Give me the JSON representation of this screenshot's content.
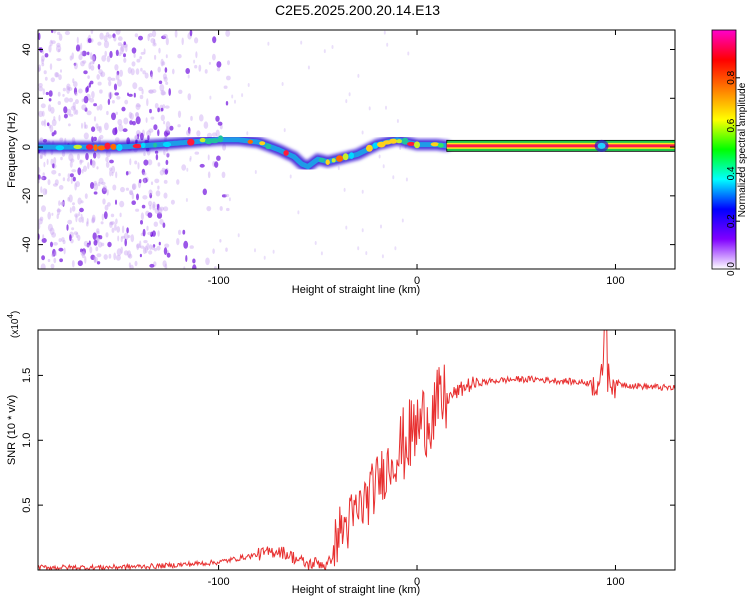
{
  "title": "C2E5.2025.200.20.14.E13",
  "colors": {
    "signal": "#e83030",
    "scatter": "#8b1fe0",
    "colorbar_stops": [
      "#ff00cc",
      "#ff0000",
      "#ff7f00",
      "#ffff00",
      "#00ff00",
      "#00ffff",
      "#0000ff",
      "#8000ff",
      "#ffffff"
    ]
  },
  "chart_data": [
    {
      "type": "heatmap",
      "xlabel": "Height of straight line (km)",
      "ylabel": "Frequency (Hz)",
      "xlim": [
        -191,
        130
      ],
      "ylim": [
        -50,
        48
      ],
      "xticks": [
        -100,
        0,
        100
      ],
      "xtick_labels": [
        "-100",
        "0",
        "100"
      ],
      "yticks": [
        -40,
        -20,
        0,
        20,
        40
      ],
      "ytick_labels": [
        "-40",
        "-20",
        "0",
        "20",
        "40"
      ],
      "colorbar": {
        "label": "Normalized spectral amplitude",
        "range": [
          0.0,
          1.0
        ],
        "ticks": [
          0.0,
          0.2,
          0.4,
          0.6,
          0.8
        ],
        "tick_labels": [
          "0.0",
          "0.2",
          "0.4",
          "0.6",
          "0.8"
        ]
      },
      "ridge": {
        "x": [
          -191,
          -170,
          -150,
          -130,
          -115,
          -100,
          -90,
          -80,
          -70,
          -62,
          -58,
          -55,
          -50,
          -45,
          -40,
          -35,
          -30,
          -25,
          -20,
          -15,
          -10,
          -5,
          0,
          5,
          10,
          15,
          20,
          40,
          60,
          80,
          100,
          120,
          130
        ],
        "y": [
          0,
          0,
          0,
          1,
          2,
          3,
          3,
          2,
          -1,
          -4,
          -7,
          -8,
          -5,
          -6,
          -5,
          -4,
          -3,
          -1,
          1,
          2,
          3,
          2,
          1,
          1,
          1,
          0.5,
          0.5,
          0.5,
          0.5,
          0.5,
          0.5,
          0.5,
          0.5
        ]
      },
      "constant_band": {
        "x": [
          15,
          130
        ],
        "y": 0.5
      },
      "noise_region_x": [
        -191,
        -125
      ]
    },
    {
      "type": "line",
      "xlabel": "Height of straight line (km)",
      "ylabel": "SNR (10 * v/v)",
      "y_multiplier": "(x10",
      "y_multiplier_exp": "4",
      "y_multiplier_close": ")",
      "xlim": [
        -191,
        130
      ],
      "ylim": [
        0,
        1.85
      ],
      "xticks": [
        -100,
        0,
        100
      ],
      "xtick_labels": [
        "-100",
        "0",
        "100"
      ],
      "yticks": [
        0.5,
        1.0,
        1.5
      ],
      "ytick_labels": [
        "0.5",
        "1.0",
        "1.5"
      ],
      "series": [
        {
          "x": [
            -191,
            -160,
            -130,
            -110,
            -100,
            -90,
            -80,
            -70,
            -65,
            -60,
            -55,
            -50,
            -45,
            -42,
            -40,
            -35,
            -30,
            -25,
            -20,
            -15,
            -10,
            -5,
            0,
            5,
            10,
            15,
            20,
            25,
            30,
            40,
            50,
            60,
            70,
            80,
            90,
            95,
            100,
            110,
            120,
            130
          ],
          "y": [
            0.02,
            0.02,
            0.03,
            0.05,
            0.06,
            0.09,
            0.12,
            0.15,
            0.12,
            0.08,
            0.04,
            0.06,
            0.03,
            0.15,
            0.28,
            0.35,
            0.45,
            0.55,
            0.68,
            0.8,
            0.9,
            1.0,
            1.1,
            1.18,
            1.25,
            1.32,
            1.37,
            1.42,
            1.44,
            1.46,
            1.47,
            1.47,
            1.46,
            1.45,
            1.44,
            1.5,
            1.44,
            1.42,
            1.41,
            1.4
          ]
        }
      ]
    }
  ]
}
